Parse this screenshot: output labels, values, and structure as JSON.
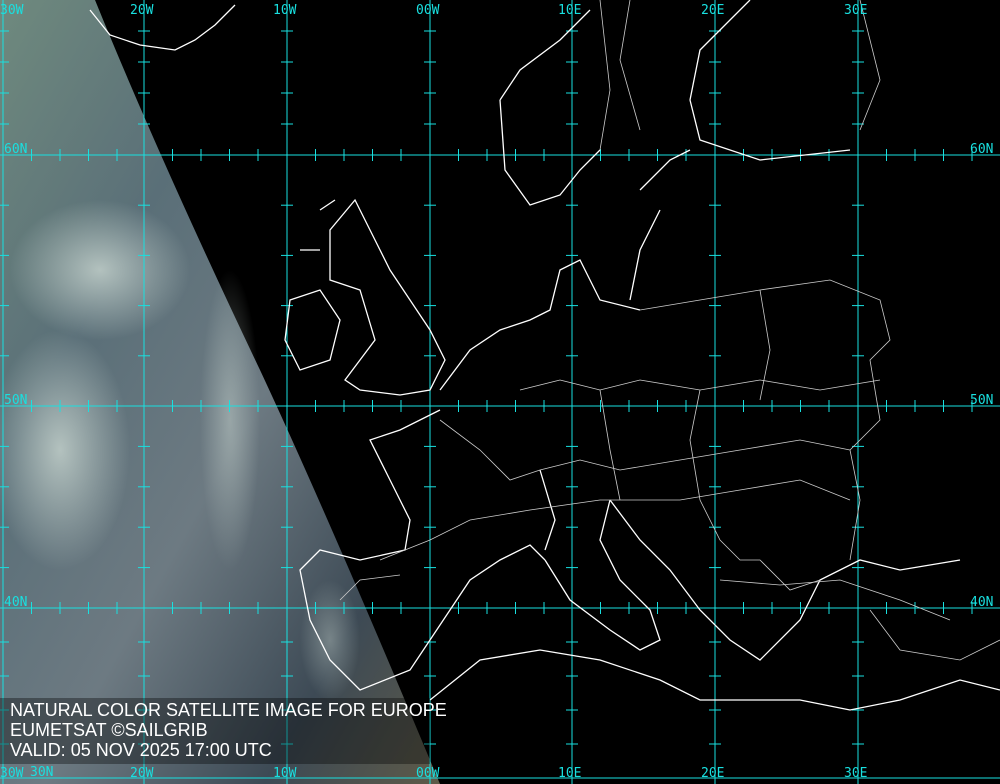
{
  "caption": {
    "title": "NATURAL COLOR SATELLITE IMAGE FOR EUROPE",
    "source": "EUMETSAT ©SAILGRIB",
    "valid": "VALID:  05 NOV 2025 17:00 UTC"
  },
  "grid": {
    "longitudes": [
      "30W",
      "20W",
      "10W",
      "00W",
      "10E",
      "20E",
      "30E"
    ],
    "latitudes": [
      "60N",
      "50N",
      "40N",
      "30N"
    ],
    "color": "#19e0e0"
  },
  "colors": {
    "background": "#000000",
    "coastline": "#ffffff",
    "borders": "#cccccc"
  }
}
